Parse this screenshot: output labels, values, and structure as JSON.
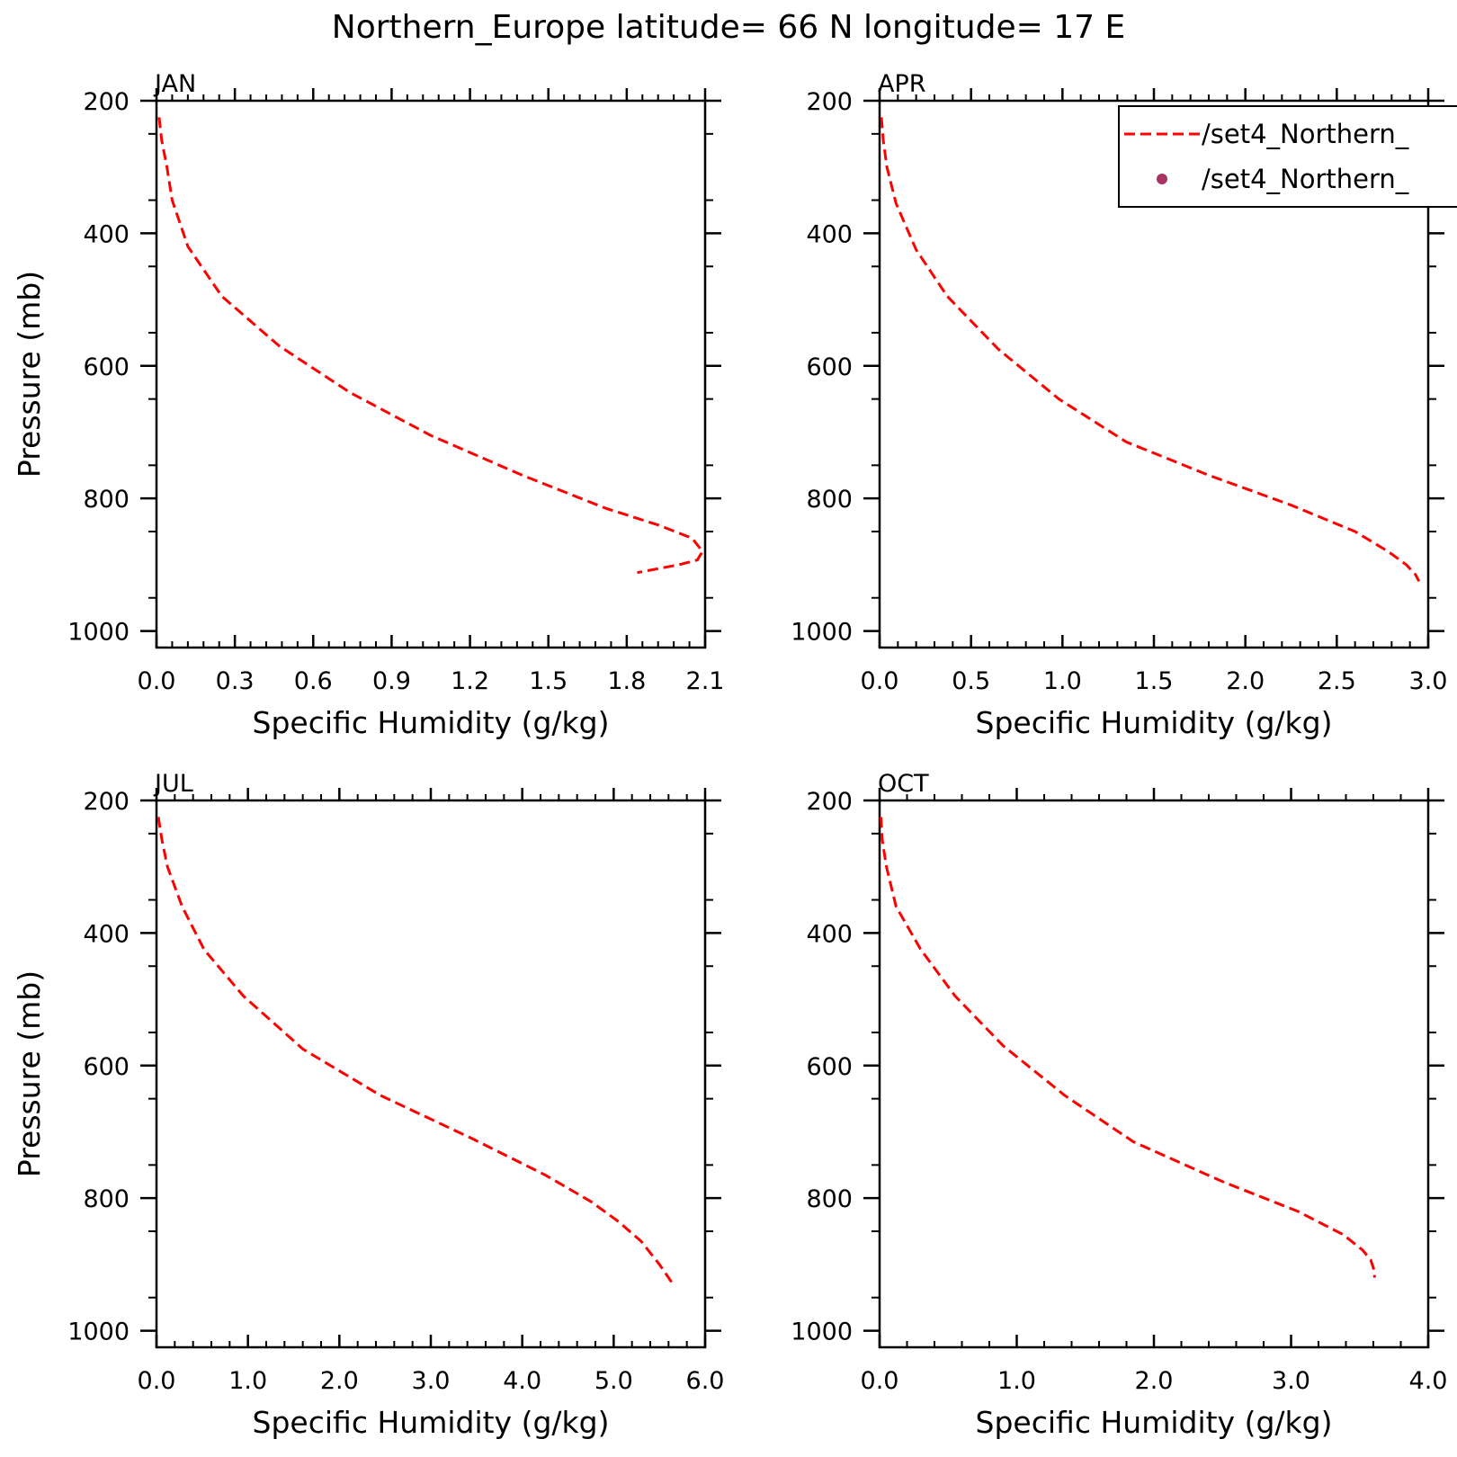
{
  "title": "Northern_Europe  latitude= 66 N longitude= 17 E",
  "colors": {
    "model_line": "#ff0000",
    "obs_marker": "#aa3366",
    "axes": "#000000"
  },
  "legend": {
    "entries": [
      {
        "label": "/set4_Northern_",
        "style": "dashed-line"
      },
      {
        "label": "/set4_Northern_",
        "style": "dot"
      }
    ],
    "placement": "top-right of APR panel"
  },
  "chart_data": [
    {
      "type": "line",
      "panel": "JAN",
      "xlabel": "Specific Humidity (g/kg)",
      "ylabel": "Pressure (mb)",
      "xlim": [
        0,
        2.1
      ],
      "ylim": [
        200,
        1025
      ],
      "y_inverted": true,
      "xticks": [
        "0.0",
        "0.3",
        "0.6",
        "0.9",
        "1.2",
        "1.5",
        "1.8",
        "2.1"
      ],
      "yticks": [
        "200",
        "400",
        "600",
        "800",
        "1000"
      ],
      "grid": false,
      "series": [
        {
          "style": "dashed",
          "x": [
            0.01,
            0.02,
            0.04,
            0.06,
            0.12,
            0.25,
            0.47,
            0.74,
            1.05,
            1.4,
            1.72,
            1.92,
            2.05,
            2.09,
            2.07,
            2.0,
            1.84
          ],
          "y": [
            225,
            260,
            300,
            350,
            420,
            495,
            570,
            640,
            705,
            765,
            815,
            840,
            860,
            880,
            893,
            900,
            912
          ]
        }
      ]
    },
    {
      "type": "line",
      "panel": "APR",
      "xlabel": "Specific Humidity (g/kg)",
      "ylabel": "",
      "xlim": [
        0,
        3.0
      ],
      "ylim": [
        200,
        1025
      ],
      "y_inverted": true,
      "xticks": [
        "0.0",
        "0.5",
        "1.0",
        "1.5",
        "2.0",
        "2.5",
        "3.0"
      ],
      "yticks": [
        "200",
        "400",
        "600",
        "800",
        "1000"
      ],
      "grid": false,
      "series": [
        {
          "style": "dashed",
          "x": [
            0.01,
            0.02,
            0.04,
            0.09,
            0.2,
            0.37,
            0.65,
            0.98,
            1.35,
            1.8,
            2.25,
            2.6,
            2.78,
            2.88,
            2.93,
            2.95
          ],
          "y": [
            225,
            260,
            300,
            355,
            425,
            495,
            575,
            650,
            715,
            765,
            810,
            850,
            880,
            900,
            915,
            925
          ]
        }
      ]
    },
    {
      "type": "line",
      "panel": "JUL",
      "xlabel": "Specific Humidity (g/kg)",
      "ylabel": "Pressure (mb)",
      "xlim": [
        0,
        6.0
      ],
      "ylim": [
        200,
        1025
      ],
      "y_inverted": true,
      "xticks": [
        "0.0",
        "1.0",
        "2.0",
        "3.0",
        "4.0",
        "5.0",
        "6.0"
      ],
      "yticks": [
        "200",
        "400",
        "600",
        "800",
        "1000"
      ],
      "grid": false,
      "series": [
        {
          "style": "dashed",
          "x": [
            0.02,
            0.06,
            0.12,
            0.28,
            0.52,
            0.95,
            1.6,
            2.45,
            3.45,
            4.25,
            4.75,
            5.05,
            5.3,
            5.5,
            5.65
          ],
          "y": [
            225,
            260,
            300,
            360,
            425,
            495,
            575,
            645,
            710,
            765,
            805,
            835,
            865,
            900,
            930
          ]
        }
      ]
    },
    {
      "type": "line",
      "panel": "OCT",
      "xlabel": "Specific Humidity (g/kg)",
      "ylabel": "",
      "xlim": [
        0,
        4.0
      ],
      "ylim": [
        200,
        1025
      ],
      "y_inverted": true,
      "xticks": [
        "0.0",
        "1.0",
        "2.0",
        "3.0",
        "4.0"
      ],
      "yticks": [
        "200",
        "400",
        "600",
        "800",
        "1000"
      ],
      "grid": false,
      "series": [
        {
          "style": "dashed",
          "x": [
            0.01,
            0.02,
            0.05,
            0.12,
            0.3,
            0.55,
            0.9,
            1.35,
            1.85,
            2.5,
            3.05,
            3.38,
            3.52,
            3.58,
            3.6,
            3.61
          ],
          "y": [
            225,
            260,
            300,
            360,
            425,
            495,
            570,
            645,
            715,
            775,
            820,
            855,
            878,
            893,
            905,
            920
          ]
        }
      ]
    }
  ]
}
